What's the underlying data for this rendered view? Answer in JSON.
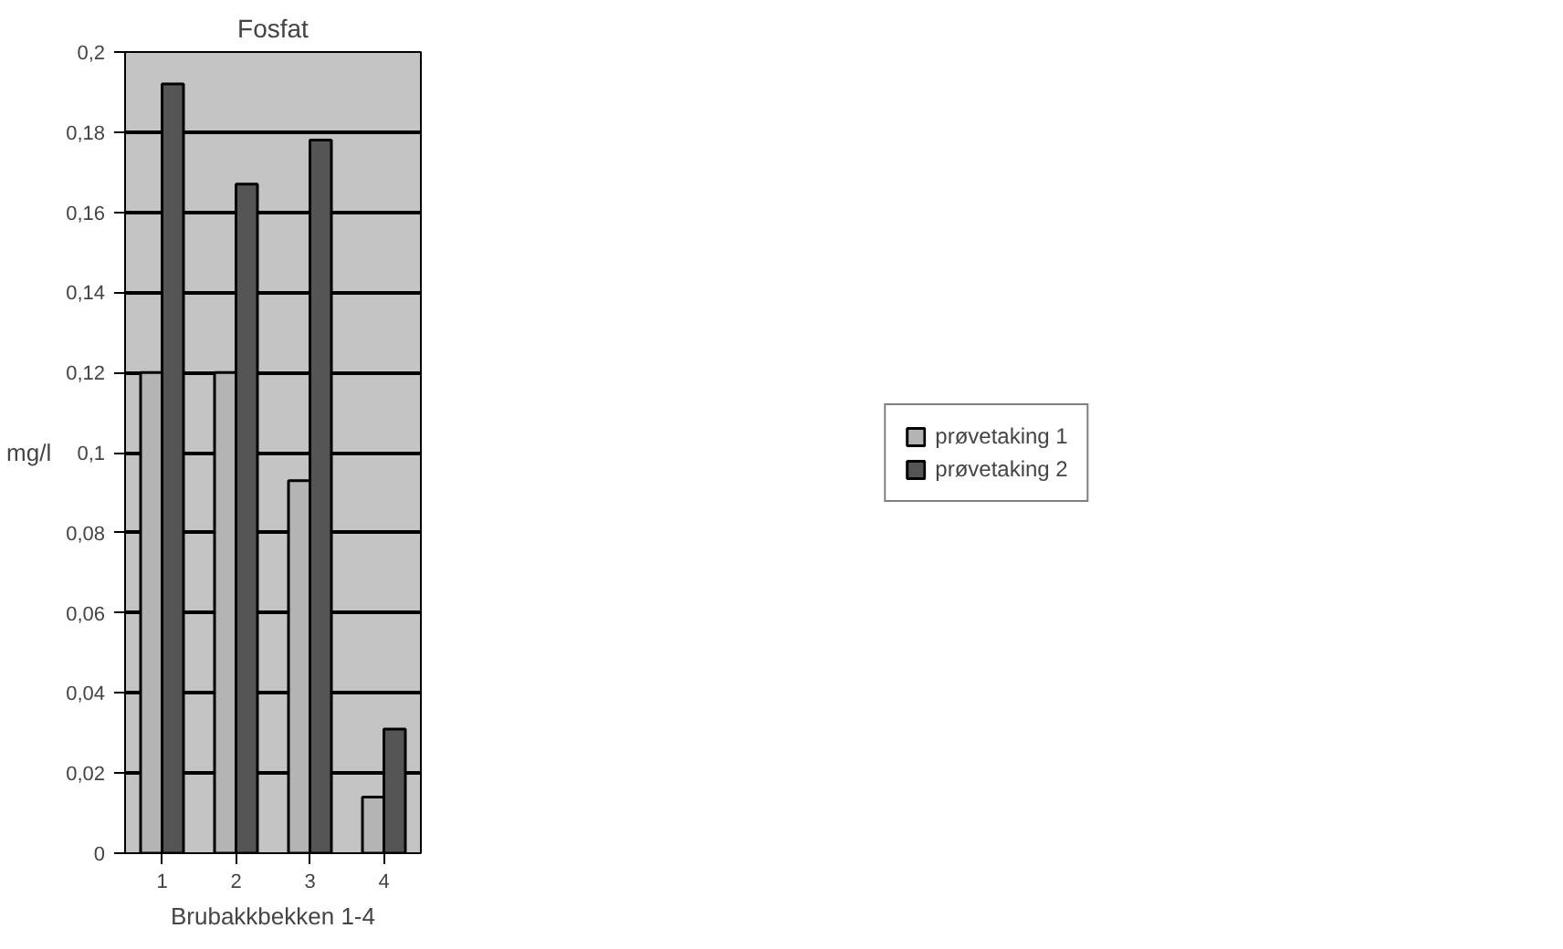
{
  "chart_data": {
    "type": "bar",
    "title": "Fosfat",
    "xlabel": "Brubakkbekken 1-4",
    "ylabel": "mg/l",
    "categories": [
      "1",
      "2",
      "3",
      "4"
    ],
    "series": [
      {
        "name": "prøvetaking 1",
        "color": "#b4b4b4",
        "values": [
          0.12,
          0.12,
          0.093,
          0.014
        ]
      },
      {
        "name": "prøvetaking 2",
        "color": "#555555",
        "values": [
          0.192,
          0.167,
          0.178,
          0.031
        ]
      }
    ],
    "ylim": [
      0,
      0.2
    ],
    "yticks": [
      {
        "value": 0,
        "label": "0"
      },
      {
        "value": 0.02,
        "label": "0,02"
      },
      {
        "value": 0.04,
        "label": "0,04"
      },
      {
        "value": 0.06,
        "label": "0,06"
      },
      {
        "value": 0.08,
        "label": "0,08"
      },
      {
        "value": 0.1,
        "label": "0,1"
      },
      {
        "value": 0.12,
        "label": "0,12"
      },
      {
        "value": 0.14,
        "label": "0,14"
      },
      {
        "value": 0.16,
        "label": "0,16"
      },
      {
        "value": 0.18,
        "label": "0,18"
      },
      {
        "value": 0.2,
        "label": "0,2"
      }
    ],
    "grid": "y",
    "legend": "right"
  }
}
